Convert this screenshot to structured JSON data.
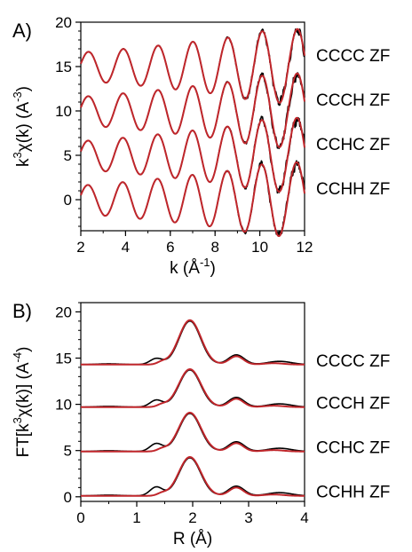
{
  "colors": {
    "experiment": "#000000",
    "fit": "#c0262b"
  },
  "chart_data": [
    {
      "type": "line",
      "panel_label": "A)",
      "xlabel": "k (Å",
      "xlabel_sup": "-1",
      "xlabel_end": ")",
      "ylabel_prefix": "k",
      "ylabel_sup1": "3",
      "ylabel_mid": "χ(k) (A",
      "ylabel_sup2": "-3",
      "ylabel_end": ")",
      "xlim": [
        2,
        12
      ],
      "ylim": [
        -3.5,
        20
      ],
      "xticks": [
        "2",
        "4",
        "6",
        "8",
        "10",
        "12"
      ],
      "yticks": [
        "0",
        "5",
        "10",
        "15",
        "20"
      ],
      "series": [
        {
          "name": "CCCC ZF",
          "offset": 15
        },
        {
          "name": "CCCH ZF",
          "offset": 10
        },
        {
          "name": "CCHC ZF",
          "offset": 5
        },
        {
          "name": "CCHH ZF",
          "offset": 0
        }
      ]
    },
    {
      "type": "line",
      "panel_label": "B)",
      "xlabel": "R (Å)",
      "ylabel_prefix": "FT[k",
      "ylabel_sup1": "3",
      "ylabel_mid": "χ(k)] (A",
      "ylabel_sup2": "-4",
      "ylabel_end": ")",
      "xlim": [
        0,
        4
      ],
      "ylim": [
        -0.5,
        21
      ],
      "xticks": [
        "0",
        "1",
        "2",
        "3",
        "4"
      ],
      "yticks": [
        "0",
        "5",
        "10",
        "15",
        "20"
      ],
      "peak_position": 1.95,
      "second_peak_position": 2.78,
      "series": [
        {
          "name": "CCCC ZF",
          "offset": 14.3,
          "peak_height": 4.8
        },
        {
          "name": "CCCH ZF",
          "offset": 9.7,
          "peak_height": 4.1
        },
        {
          "name": "CCHC ZF",
          "offset": 4.9,
          "peak_height": 4.2
        },
        {
          "name": "CCHH ZF",
          "offset": 0.1,
          "peak_height": 4.2
        }
      ]
    }
  ]
}
